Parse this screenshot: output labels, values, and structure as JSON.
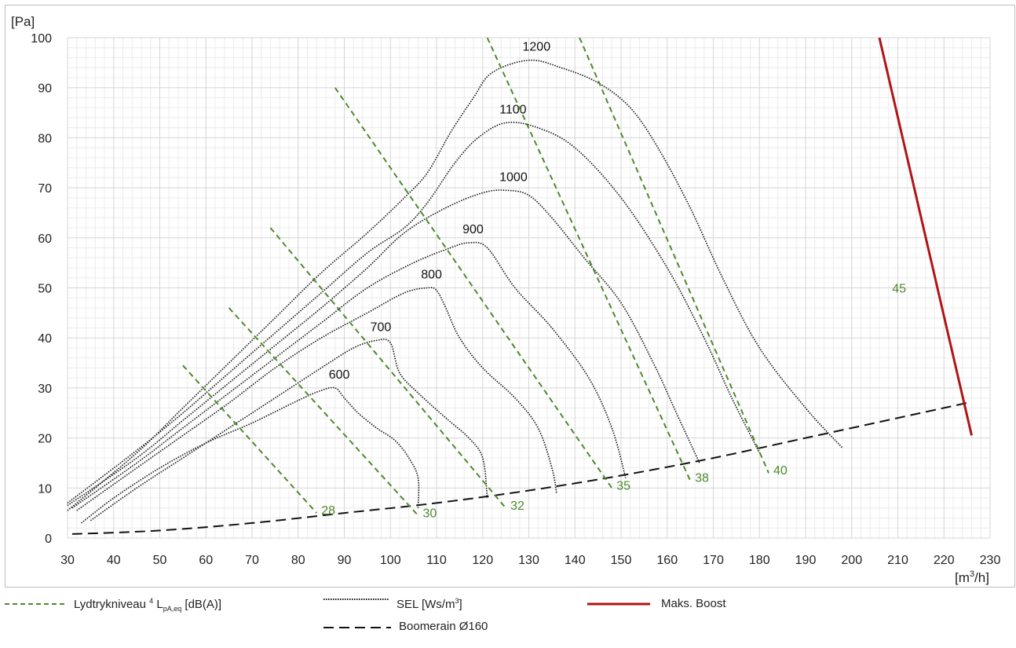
{
  "chart_data": {
    "type": "line",
    "y_unit_label": "[Pa]",
    "x_unit_label_base": "[m",
    "x_unit_label_sup": "3",
    "x_unit_label_end": "/h]",
    "xlim": [
      30,
      230
    ],
    "ylim": [
      0,
      100
    ],
    "x_ticks": [
      30,
      40,
      50,
      60,
      70,
      80,
      90,
      100,
      110,
      120,
      130,
      140,
      150,
      160,
      170,
      180,
      190,
      200,
      210,
      220,
      230
    ],
    "y_ticks": [
      0,
      10,
      20,
      30,
      40,
      50,
      60,
      70,
      80,
      90,
      100
    ],
    "grid": true,
    "colors": {
      "sound": "#4e8a2c",
      "sel": "#111111",
      "boost": "#b01515",
      "system": "#111111",
      "grid": "#d6d6d6"
    },
    "sound_lines": [
      {
        "label": "28",
        "points": [
          [
            55,
            34.5
          ],
          [
            84,
            5
          ]
        ]
      },
      {
        "label": "30",
        "points": [
          [
            65,
            46
          ],
          [
            106,
            4.5
          ]
        ]
      },
      {
        "label": "32",
        "points": [
          [
            74,
            62
          ],
          [
            125,
            6
          ]
        ]
      },
      {
        "label": "35",
        "points": [
          [
            88,
            90
          ],
          [
            148,
            10
          ]
        ]
      },
      {
        "label": "38",
        "points": [
          [
            121,
            100
          ],
          [
            165,
            11.5
          ]
        ]
      },
      {
        "label": "40",
        "points": [
          [
            141,
            100
          ],
          [
            182,
            13
          ]
        ]
      }
    ],
    "sel_curves": [
      {
        "label": "600",
        "points": [
          [
            33,
            3
          ],
          [
            40,
            8
          ],
          [
            50,
            14
          ],
          [
            60,
            19
          ],
          [
            70,
            23
          ],
          [
            80,
            27.5
          ],
          [
            85,
            29.5
          ],
          [
            88,
            30
          ],
          [
            90,
            28
          ],
          [
            93,
            25
          ],
          [
            97,
            22
          ],
          [
            101,
            19.5
          ],
          [
            104,
            16
          ],
          [
            106,
            12
          ],
          [
            106,
            6
          ]
        ]
      },
      {
        "label": "700",
        "points": [
          [
            35,
            3.5
          ],
          [
            45,
            10
          ],
          [
            55,
            16
          ],
          [
            65,
            22
          ],
          [
            75,
            28
          ],
          [
            85,
            34
          ],
          [
            92,
            38
          ],
          [
            97,
            39.5
          ],
          [
            100,
            39
          ],
          [
            102,
            33
          ],
          [
            106,
            29
          ],
          [
            112,
            24
          ],
          [
            117,
            20
          ],
          [
            120,
            16
          ],
          [
            121,
            8
          ]
        ]
      },
      {
        "label": "800",
        "points": [
          [
            32,
            5.5
          ],
          [
            45,
            14
          ],
          [
            55,
            20.5
          ],
          [
            65,
            27
          ],
          [
            75,
            34
          ],
          [
            85,
            40
          ],
          [
            95,
            45
          ],
          [
            103,
            49
          ],
          [
            108,
            50
          ],
          [
            110,
            49.5
          ],
          [
            112,
            46
          ],
          [
            115,
            40
          ],
          [
            120,
            34
          ],
          [
            127,
            28
          ],
          [
            132,
            22
          ],
          [
            135,
            14
          ],
          [
            136,
            9
          ]
        ]
      },
      {
        "label": "900",
        "points": [
          [
            31,
            6
          ],
          [
            45,
            15
          ],
          [
            55,
            22
          ],
          [
            65,
            29
          ],
          [
            75,
            36
          ],
          [
            85,
            43
          ],
          [
            95,
            50
          ],
          [
            105,
            55
          ],
          [
            113,
            58
          ],
          [
            117,
            59
          ],
          [
            121,
            58
          ],
          [
            127,
            50
          ],
          [
            135,
            42
          ],
          [
            143,
            32
          ],
          [
            148,
            22
          ],
          [
            151,
            12
          ]
        ]
      },
      {
        "label": "1000",
        "points": [
          [
            30,
            6.5
          ],
          [
            45,
            16
          ],
          [
            55,
            23.5
          ],
          [
            65,
            31
          ],
          [
            75,
            38.5
          ],
          [
            85,
            46
          ],
          [
            95,
            54
          ],
          [
            103,
            61
          ],
          [
            112,
            66
          ],
          [
            120,
            69
          ],
          [
            125,
            69.5
          ],
          [
            130,
            68.5
          ],
          [
            135,
            64
          ],
          [
            142,
            56
          ],
          [
            150,
            47
          ],
          [
            157,
            35
          ],
          [
            162,
            25
          ],
          [
            167,
            15
          ]
        ]
      },
      {
        "label": "1100",
        "points": [
          [
            30,
            7
          ],
          [
            45,
            17.5
          ],
          [
            55,
            25
          ],
          [
            65,
            33
          ],
          [
            75,
            41
          ],
          [
            85,
            49
          ],
          [
            95,
            57
          ],
          [
            103,
            62
          ],
          [
            108,
            67
          ],
          [
            114,
            75
          ],
          [
            119,
            80
          ],
          [
            125,
            83
          ],
          [
            132,
            82
          ],
          [
            140,
            78
          ],
          [
            150,
            68
          ],
          [
            160,
            54
          ],
          [
            168,
            40
          ],
          [
            174,
            28
          ],
          [
            180,
            17
          ]
        ]
      },
      {
        "label": "1200",
        "points": [
          [
            30,
            5.5
          ],
          [
            45,
            17
          ],
          [
            55,
            26
          ],
          [
            65,
            35
          ],
          [
            75,
            44
          ],
          [
            85,
            53
          ],
          [
            95,
            61
          ],
          [
            103,
            68
          ],
          [
            108,
            73
          ],
          [
            113,
            81
          ],
          [
            118,
            88
          ],
          [
            122,
            93
          ],
          [
            130,
            95.5
          ],
          [
            137,
            94
          ],
          [
            145,
            91
          ],
          [
            152,
            86
          ],
          [
            158,
            78
          ],
          [
            165,
            66
          ],
          [
            172,
            52
          ],
          [
            180,
            38
          ],
          [
            190,
            26
          ],
          [
            198,
            18
          ]
        ]
      }
    ],
    "boost_line": {
      "label": "45",
      "points": [
        [
          206,
          100
        ],
        [
          226,
          20.5
        ]
      ]
    },
    "system_curve": {
      "points": [
        [
          31,
          0.8
        ],
        [
          50,
          1.5
        ],
        [
          70,
          3
        ],
        [
          90,
          5
        ],
        [
          110,
          7
        ],
        [
          130,
          9.5
        ],
        [
          150,
          12.5
        ],
        [
          170,
          16
        ],
        [
          190,
          20
        ],
        [
          210,
          24
        ],
        [
          226,
          27.2
        ]
      ]
    },
    "legend": {
      "sound_pre": "Lydtrykniveau ",
      "sound_sup": "4",
      "sound_mid": " L",
      "sound_sub": "pA,eq",
      "sound_post": " [dB(A)]",
      "sel_pre": "SEL [Ws/m",
      "sel_sup": "3",
      "sel_post": "]",
      "boost": "Maks. Boost",
      "system": "Boomerain Ø160"
    }
  }
}
